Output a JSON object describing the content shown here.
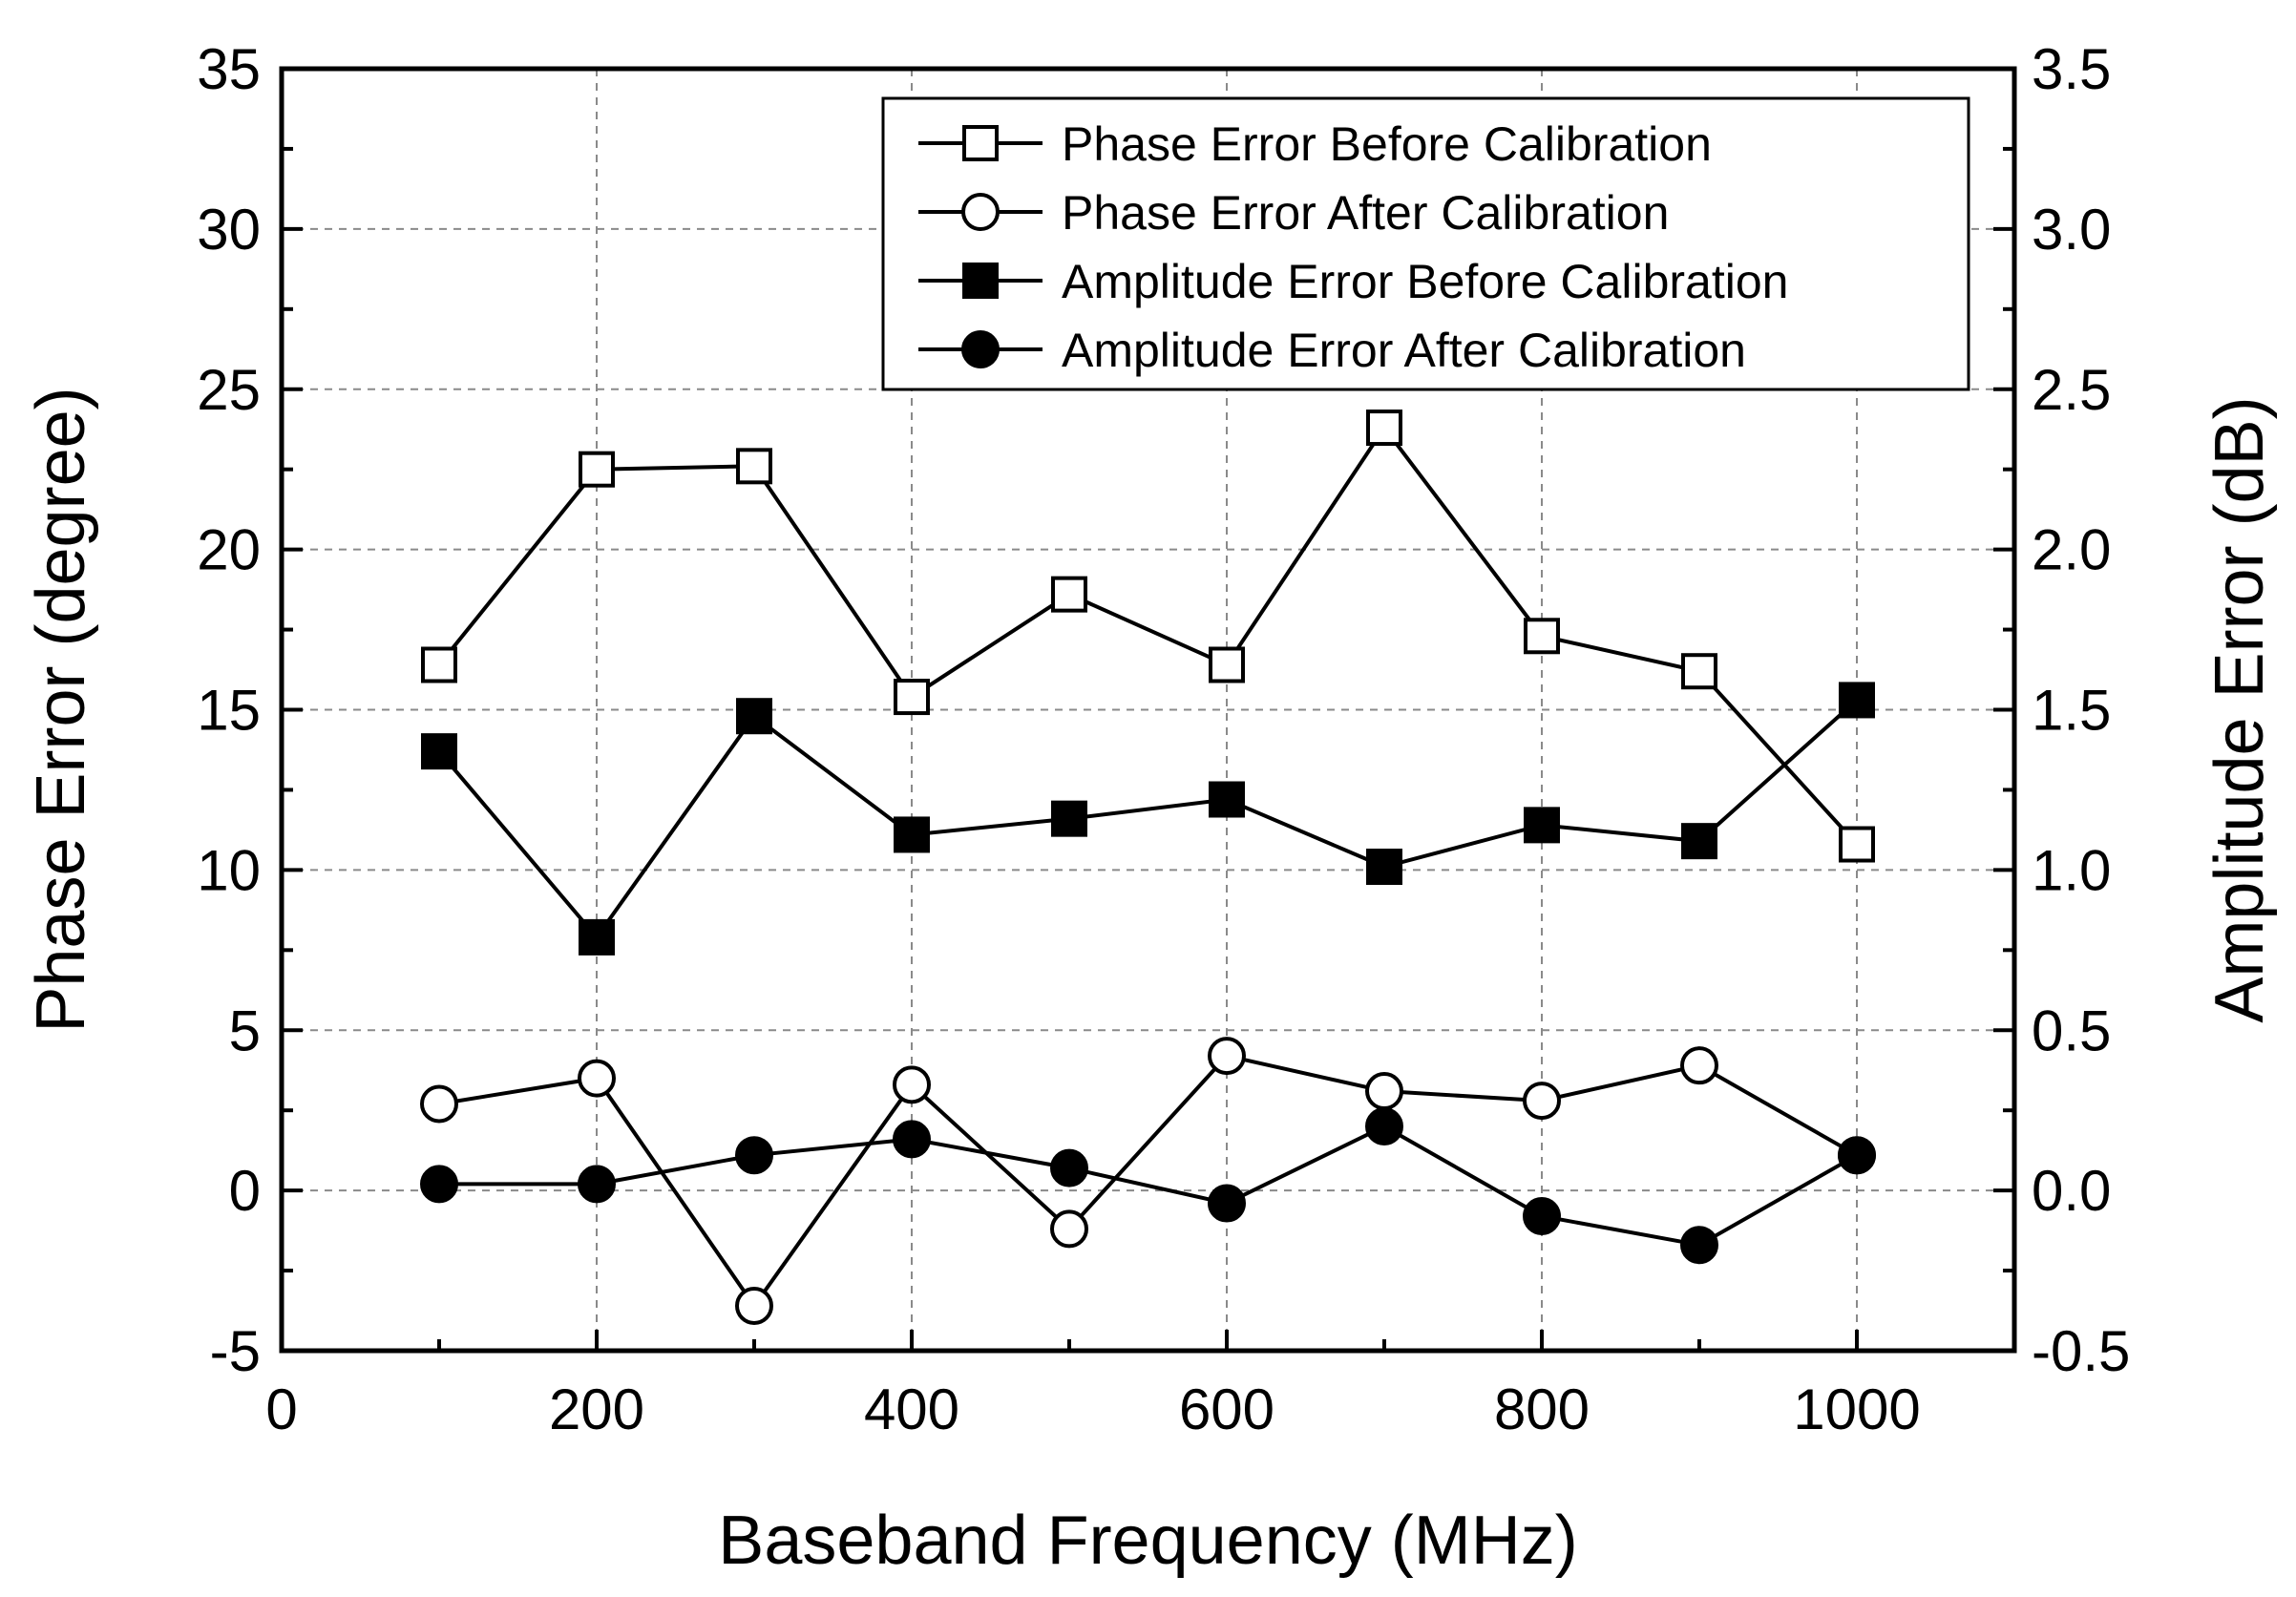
{
  "chart_data": {
    "type": "line",
    "xlabel": "Baseband Frequency (MHz)",
    "ylabel": "Phase Error (degree)",
    "y2label": "Amplitude Error (dB)",
    "xlim": [
      0,
      1100
    ],
    "ylim": [
      -5,
      35
    ],
    "y2lim": [
      -0.5,
      3.5
    ],
    "xticks": [
      "0",
      "200",
      "400",
      "600",
      "800",
      "1000"
    ],
    "xtick_values": [
      0,
      200,
      400,
      600,
      800,
      1000
    ],
    "yticks": [
      "-5",
      "0",
      "5",
      "10",
      "15",
      "20",
      "25",
      "30",
      "35"
    ],
    "ytick_values": [
      -5,
      0,
      5,
      10,
      15,
      20,
      25,
      30,
      35
    ],
    "y2ticks": [
      "-0.5",
      "0.0",
      "0.5",
      "1.0",
      "1.5",
      "2.0",
      "2.5",
      "3.0",
      "3.5"
    ],
    "y2tick_values": [
      -0.5,
      0,
      0.5,
      1.0,
      1.5,
      2.0,
      2.5,
      3.0,
      3.5
    ],
    "grid": true,
    "legend_position": "top-right",
    "x": [
      100,
      200,
      300,
      400,
      500,
      600,
      700,
      800,
      900,
      1000
    ],
    "series": [
      {
        "name": "Phase Error Before Calibration",
        "axis": "left",
        "marker": "square-open",
        "values": [
          16.4,
          22.5,
          22.6,
          15.4,
          18.6,
          16.4,
          23.8,
          17.3,
          16.2,
          10.8
        ]
      },
      {
        "name": "Phase Error After Calibration",
        "axis": "left",
        "marker": "circle-open",
        "values": [
          2.7,
          3.5,
          -3.6,
          3.3,
          -1.2,
          4.2,
          3.1,
          2.8,
          3.9,
          1.1
        ]
      },
      {
        "name": "Amplitude Error Before Calibration",
        "axis": "right",
        "marker": "square-filled",
        "values": [
          1.37,
          0.79,
          1.48,
          1.11,
          1.16,
          1.22,
          1.01,
          1.14,
          1.09,
          1.53
        ]
      },
      {
        "name": "Amplitude Error After Calibration",
        "axis": "right",
        "marker": "circle-filled",
        "values": [
          0.02,
          0.02,
          0.11,
          0.16,
          0.07,
          -0.04,
          0.2,
          -0.08,
          -0.17,
          0.11
        ]
      }
    ]
  }
}
